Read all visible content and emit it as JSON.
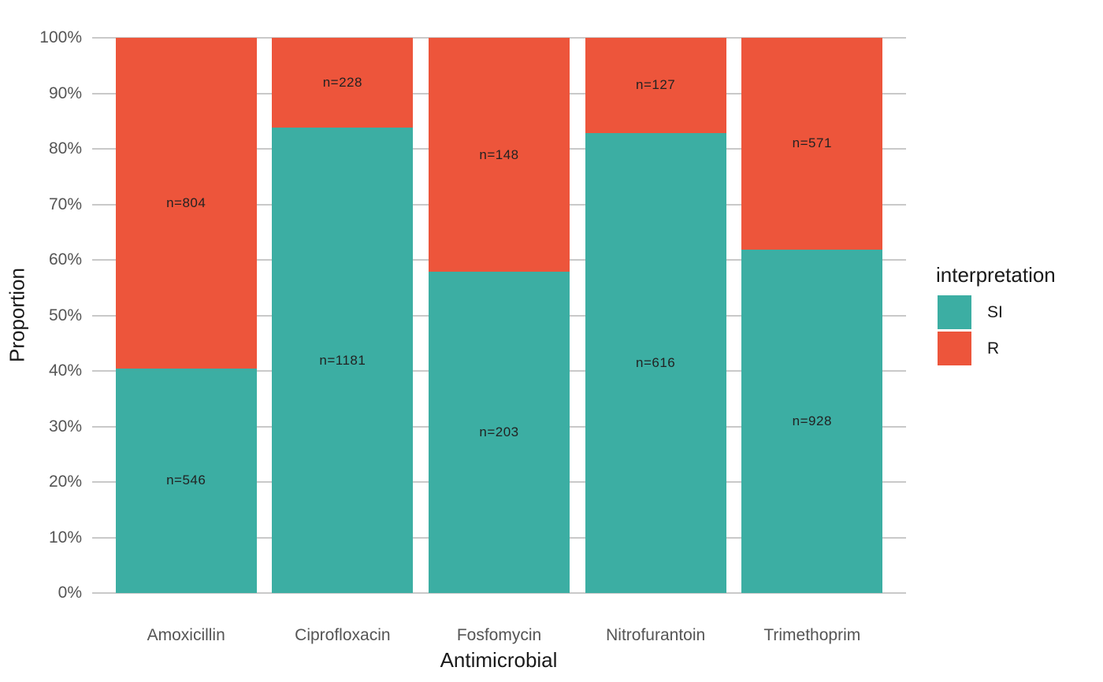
{
  "chart_data": {
    "type": "bar",
    "subtype": "stacked-proportion",
    "orientation": "vertical",
    "title": "",
    "xlabel": "Antimicrobial",
    "ylabel": "Proportion",
    "categories": [
      "Amoxicillin",
      "Ciprofloxacin",
      "Fosfomycin",
      "Nitrofurantoin",
      "Trimethoprim"
    ],
    "series": [
      {
        "name": "SI",
        "color": "#3CAEA3",
        "counts": [
          546,
          1181,
          203,
          616,
          928
        ],
        "bar_labels": [
          "n=546",
          "n=1181",
          "n=203",
          "n=616",
          "n=928"
        ]
      },
      {
        "name": "R",
        "color": "#ED553B",
        "counts": [
          804,
          228,
          148,
          127,
          571
        ],
        "bar_labels": [
          "n=804",
          "n=228",
          "n=148",
          "n=127",
          "n=571"
        ]
      }
    ],
    "si_proportion_pct": [
      40.4,
      83.8,
      57.8,
      82.9,
      61.9
    ],
    "y_axis": {
      "tick_labels": [
        "0%",
        "10%",
        "20%",
        "30%",
        "40%",
        "50%",
        "60%",
        "70%",
        "80%",
        "90%",
        "100%"
      ],
      "tick_values": [
        0,
        10,
        20,
        30,
        40,
        50,
        60,
        70,
        80,
        90,
        100
      ],
      "min": 0,
      "max": 100,
      "grid": "major-horizontal-only"
    },
    "legend": {
      "title": "interpretation",
      "position": "right",
      "entries": [
        {
          "label": "SI",
          "color": "#3CAEA3"
        },
        {
          "label": "R",
          "color": "#ED553B"
        }
      ]
    }
  },
  "colors": {
    "si": "#3CAEA3",
    "r": "#ED553B",
    "gridline": "#C9C9C9",
    "tick_text": "#555555",
    "title_text": "#1A1A1A",
    "background": "#FFFFFF"
  }
}
